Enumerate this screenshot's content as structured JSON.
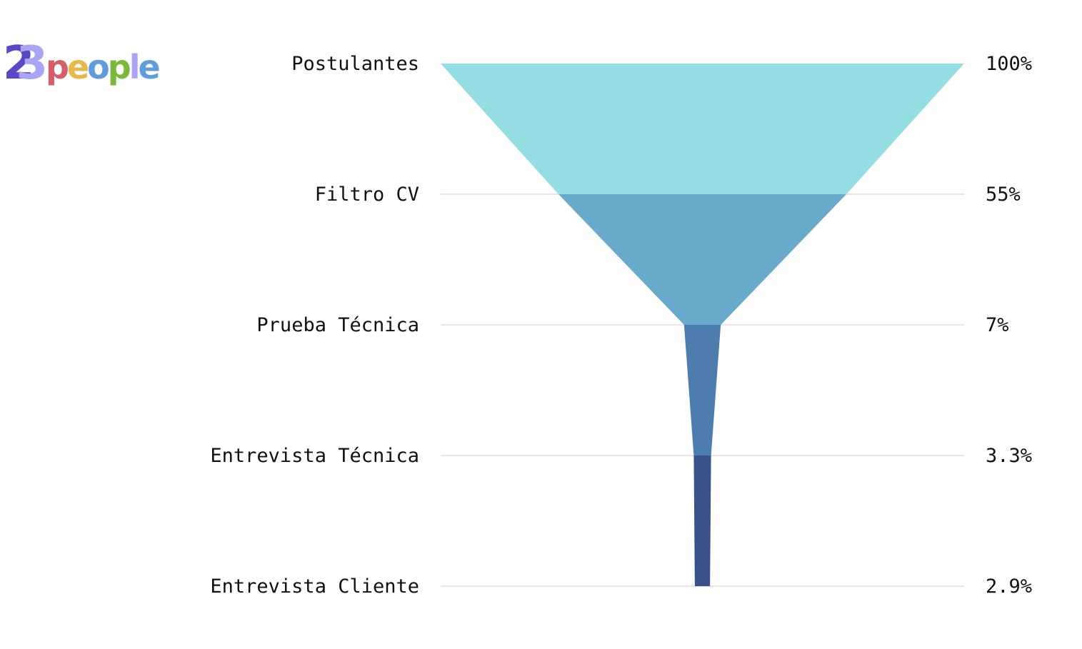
{
  "logo": {
    "text": "23people",
    "colors": {
      "two": "#5b48c8",
      "three": "#a9a4f5",
      "p": "#d45f6a",
      "e": "#e8b84a",
      "o": "#5f9cdc",
      "p2": "#7bb83a",
      "l": "#a9a4f5",
      "e2": "#5f9cdc"
    }
  },
  "chart_data": {
    "type": "funnel",
    "stages": [
      {
        "label": "Postulantes",
        "value": 100,
        "value_label": "100%",
        "color": "#94dde3"
      },
      {
        "label": "Filtro CV",
        "value": 55,
        "value_label": "55%",
        "color": "#69aacc"
      },
      {
        "label": "Prueba Técnica",
        "value": 7,
        "value_label": "7%",
        "color": "#4d7daf"
      },
      {
        "label": "Entrevista Técnica",
        "value": 3.3,
        "value_label": "3.3%",
        "color": "#3b5289"
      },
      {
        "label": "Entrevista Cliente",
        "value": 2.9,
        "value_label": "2.9%",
        "color": "#3b5289"
      }
    ],
    "grid": true
  }
}
